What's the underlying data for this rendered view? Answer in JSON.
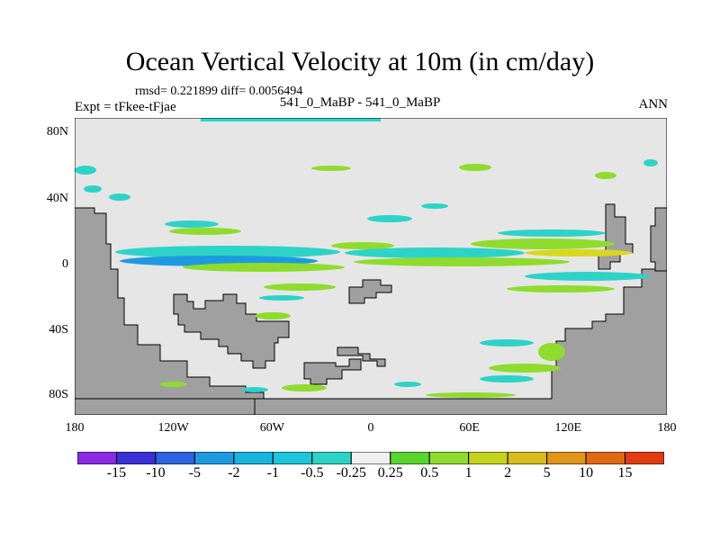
{
  "title": "Ocean Vertical Velocity at 10m (in cm/day)",
  "stats": "rmsd= 0.221899 diff= 0.0056494",
  "expt": "Expt = tFkee-tFjae",
  "center_label": "541_0_MaBP - 541_0_MaBP",
  "season": "ANN",
  "colors": {
    "land": "#a0a0a0",
    "ocean": "#e6e6e6",
    "positive_main": "#8fdc2e",
    "negative_main": "#2ed3c8",
    "strong_negative": "#1e9be0",
    "strong_positive": "#d8d820"
  },
  "map": {
    "projection": "cylindrical-equidistant",
    "x_ticks": [
      "180",
      "120W",
      "60W",
      "0",
      "60E",
      "120E",
      "180"
    ],
    "y_ticks": [
      "80N",
      "40N",
      "0",
      "40S",
      "80S"
    ]
  },
  "colorbar": {
    "labels": [
      "-15",
      "-10",
      "-5",
      "-2",
      "-1",
      "-0.5",
      "-0.25",
      "0.25",
      "0.5",
      "1",
      "2",
      "5",
      "10",
      "15"
    ],
    "colors": [
      "#8a2be2",
      "#3b2fd6",
      "#2e62e0",
      "#1e9be0",
      "#18b4e0",
      "#1cc6d8",
      "#2ed3c8",
      "#f0f0f0",
      "#5ad42e",
      "#8fdc2e",
      "#c4d41e",
      "#d8bc1e",
      "#e09418",
      "#e06a14",
      "#e03c10"
    ]
  }
}
